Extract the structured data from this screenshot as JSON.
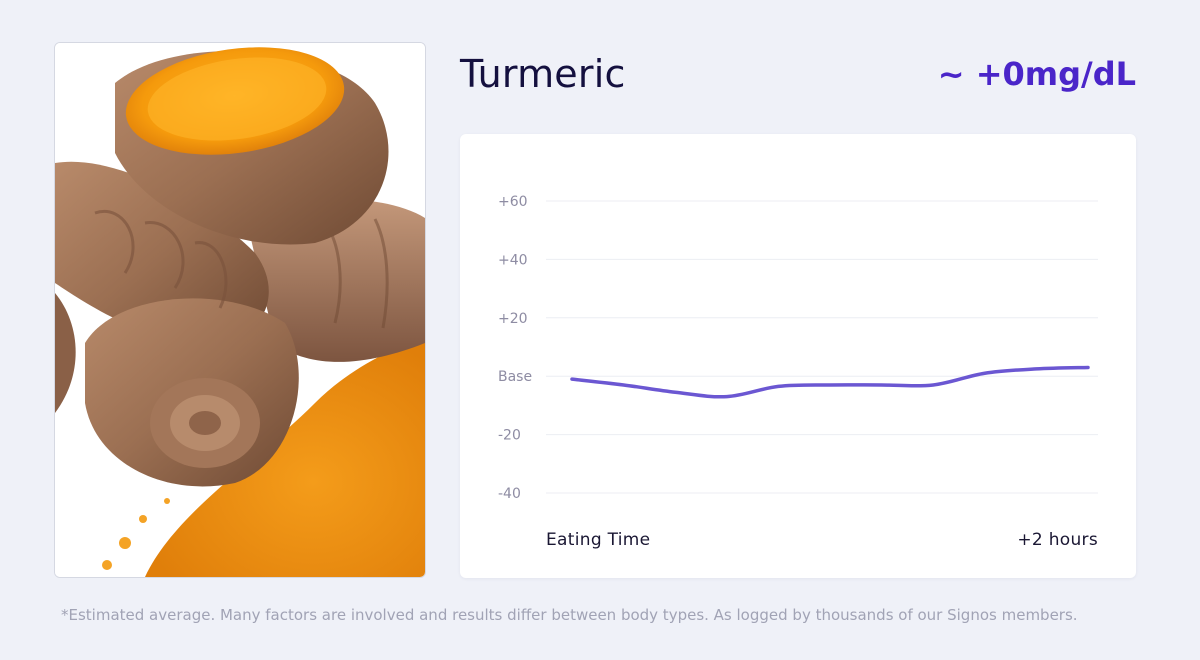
{
  "food": {
    "name": "Turmeric",
    "impact": "~ +0mg/dL",
    "image_icon": "turmeric-root-photo"
  },
  "colors": {
    "background": "#eff1f8",
    "title": "#14103f",
    "accent": "#4a25c9",
    "line": "#6b57d2",
    "gridline": "#eceef3",
    "tick_text": "#8e8ca3"
  },
  "chart_data": {
    "type": "line",
    "title": "",
    "xlabel": "",
    "ylabel": "",
    "ylim": [
      -40,
      60
    ],
    "y_ticks": [
      {
        "value": 60,
        "label": "+60"
      },
      {
        "value": 40,
        "label": "+40"
      },
      {
        "value": 20,
        "label": "+20"
      },
      {
        "value": 0,
        "label": "Base"
      },
      {
        "value": -20,
        "label": "-20"
      },
      {
        "value": -40,
        "label": "-40"
      }
    ],
    "x_labels": {
      "start": "Eating Time",
      "end": "+2 hours"
    },
    "xlim": [
      0,
      120
    ],
    "grid": true,
    "legend": "none",
    "series": [
      {
        "x": [
          0,
          12,
          24,
          36,
          48,
          60,
          72,
          84,
          96,
          108,
          120
        ],
        "values": [
          -1,
          -3,
          -5.5,
          -7,
          -3.5,
          -3,
          -3,
          -3,
          1,
          2.5,
          3
        ]
      }
    ]
  },
  "footnote": "*Estimated average. Many factors are involved and results differ between body types. As logged by thousands of our Signos members."
}
